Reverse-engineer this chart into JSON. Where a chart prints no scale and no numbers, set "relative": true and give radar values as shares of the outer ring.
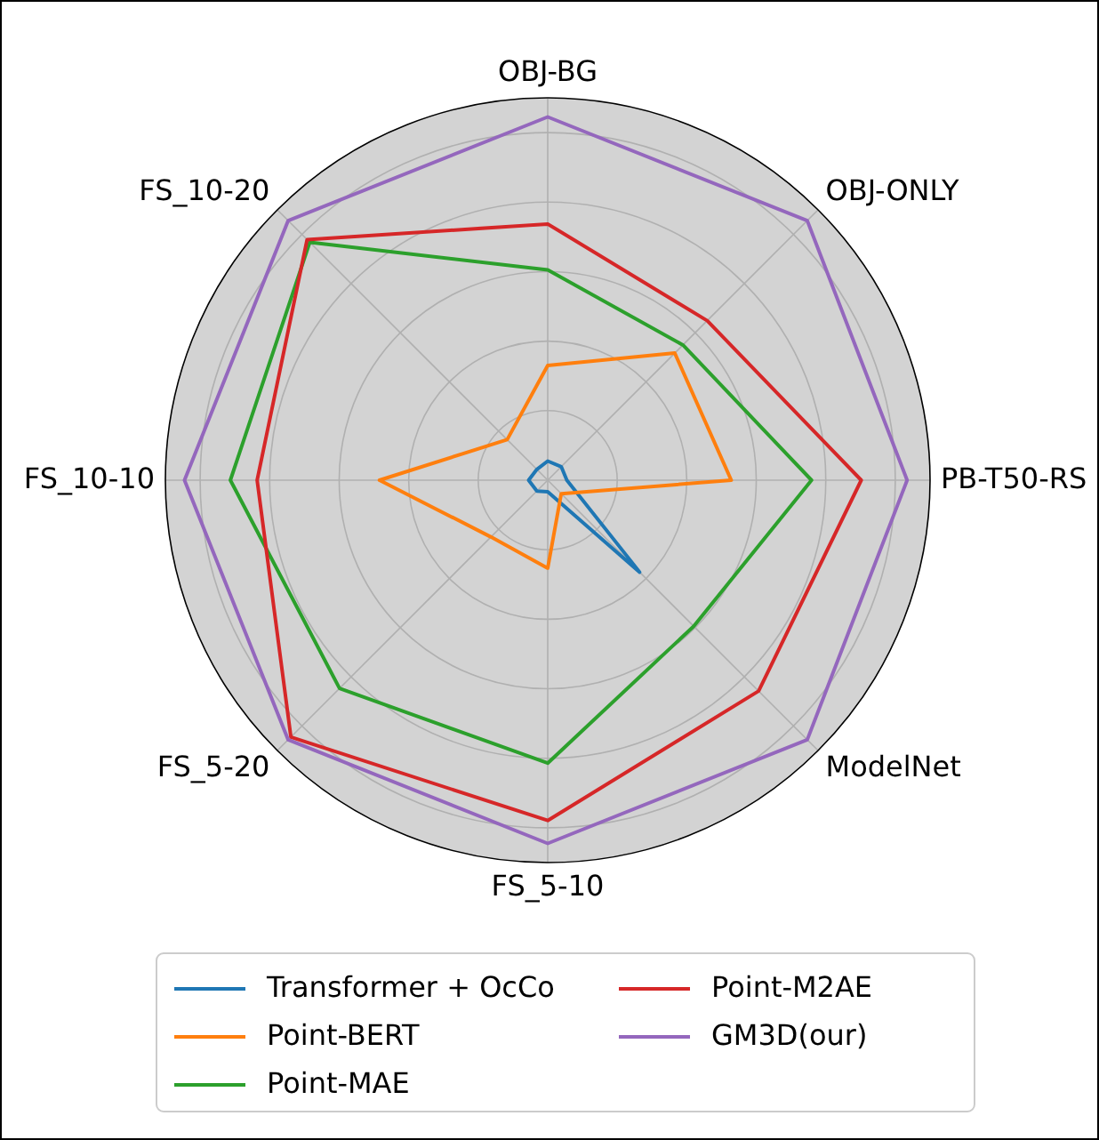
{
  "chart_data": {
    "type": "radar",
    "relative": true,
    "grid": true,
    "legend": "bottom",
    "categories": [
      "OBJ-BG",
      "OBJ-ONLY",
      "PB-T50-RS",
      "ModelNet",
      "FS_5-10",
      "FS_5-20",
      "FS_10-10",
      "FS_10-20"
    ],
    "series": [
      {
        "name": "Transformer + OcCo",
        "color": "#1f77b4",
        "values": [
          0.05,
          0.05,
          0.05,
          0.34,
          0.03,
          0.04,
          0.05,
          0.04
        ]
      },
      {
        "name": "Point-BERT",
        "color": "#ff7f0e",
        "values": [
          0.3,
          0.47,
          0.48,
          0.05,
          0.23,
          0.21,
          0.44,
          0.15
        ]
      },
      {
        "name": "Point-MAE",
        "color": "#2ca02c",
        "values": [
          0.55,
          0.5,
          0.69,
          0.54,
          0.74,
          0.77,
          0.83,
          0.88
        ]
      },
      {
        "name": "Point-M2AE",
        "color": "#d62728",
        "values": [
          0.67,
          0.59,
          0.82,
          0.78,
          0.89,
          0.95,
          0.76,
          0.89
        ]
      },
      {
        "name": "GM3D(our)",
        "color": "#9467bd",
        "values": [
          0.95,
          0.96,
          0.94,
          0.96,
          0.95,
          0.96,
          0.95,
          0.96
        ]
      }
    ]
  }
}
